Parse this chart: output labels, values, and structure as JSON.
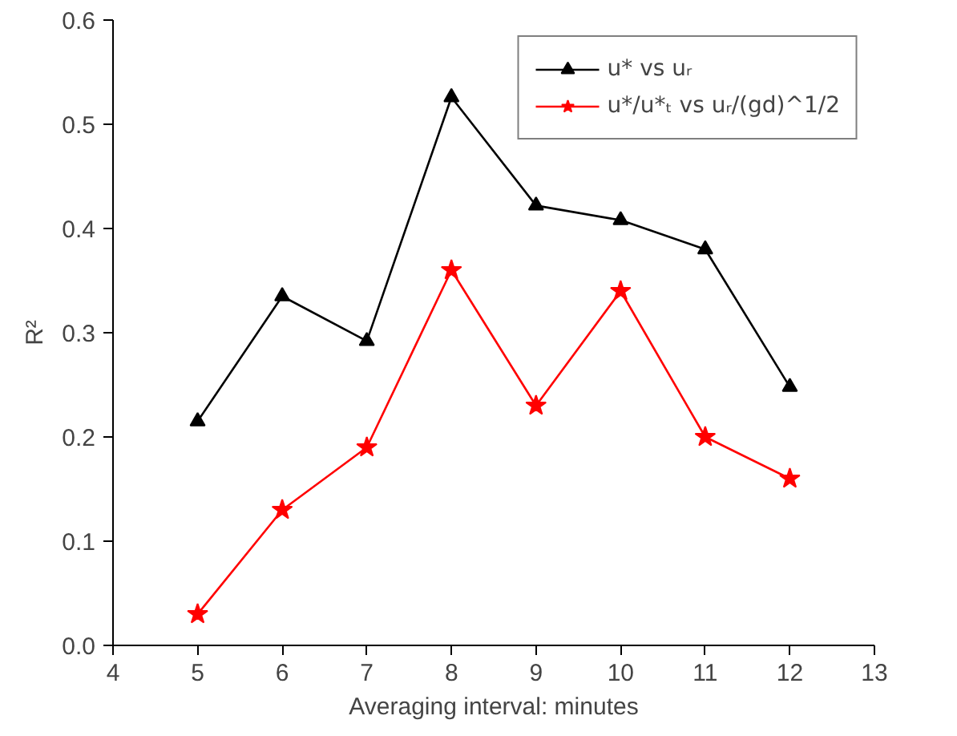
{
  "chart_data": {
    "type": "line",
    "xlabel": "Averaging interval: minutes",
    "ylabel": "R²",
    "x": [
      5,
      6,
      7,
      8,
      9,
      10,
      11,
      12
    ],
    "series": [
      {
        "name": "u* vs uᵣ",
        "color": "#000000",
        "marker": "triangle",
        "values": [
          0.215,
          0.335,
          0.292,
          0.526,
          0.422,
          0.408,
          0.38,
          0.248
        ]
      },
      {
        "name": "u*/u*ₜ vs uᵣ/(gd)^1/2",
        "color": "#ff0000",
        "marker": "star",
        "values": [
          0.03,
          0.13,
          0.19,
          0.36,
          0.23,
          0.34,
          0.2,
          0.16
        ]
      }
    ],
    "xlim": [
      4,
      13
    ],
    "xticks": [
      4,
      5,
      6,
      7,
      8,
      9,
      10,
      11,
      12,
      13
    ],
    "ylim": [
      0,
      0.6
    ],
    "yticks": [
      {
        "value": 0,
        "label": "0.0"
      },
      0.1,
      0.2,
      0.3,
      0.4,
      0.5,
      0.6
    ],
    "grid": false,
    "legend": "top right",
    "line_style": "solid"
  }
}
